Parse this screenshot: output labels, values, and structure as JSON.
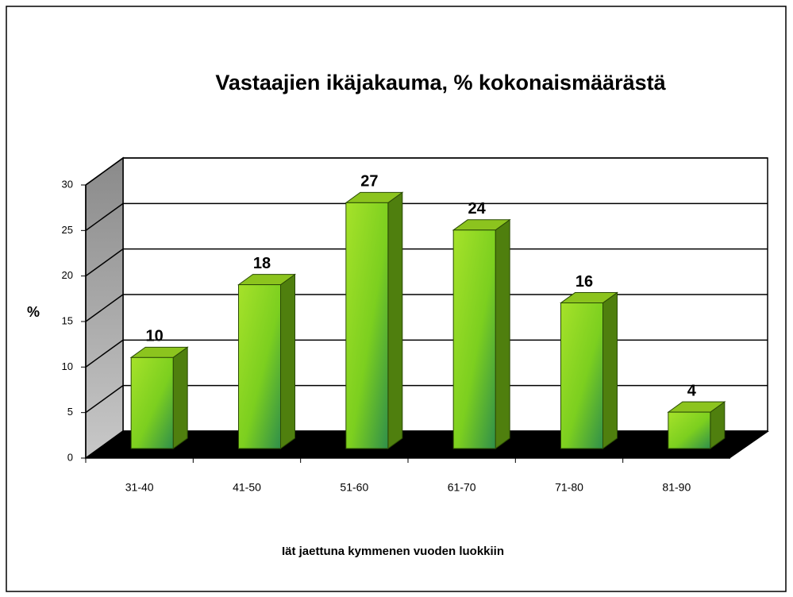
{
  "chart_data": {
    "type": "bar",
    "title": "Vastaajien ikäjakauma, % kokonaismäärästä",
    "y_label": "%",
    "x_label": "Iät jaettuna kymmenen vuoden luokkiin",
    "categories": [
      "31-40",
      "41-50",
      "51-60",
      "61-70",
      "71-80",
      "81-90"
    ],
    "values": [
      10,
      18,
      27,
      24,
      16,
      4
    ],
    "color": "#7ccf1f",
    "ylim": [
      0,
      30
    ],
    "yticks": [
      0,
      5,
      10,
      15,
      20,
      25,
      30
    ],
    "grid": true
  }
}
